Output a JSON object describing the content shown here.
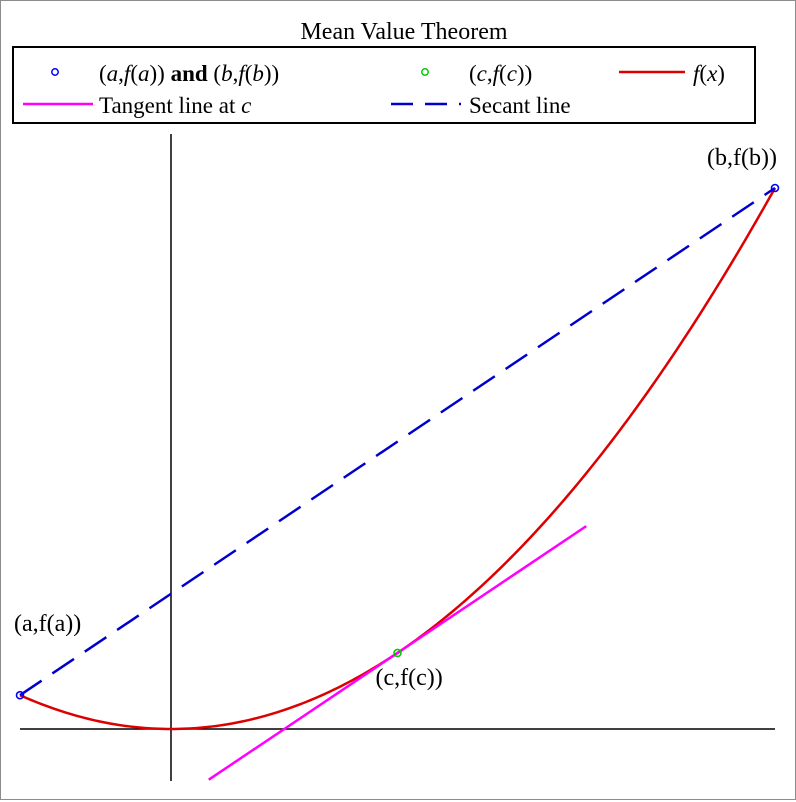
{
  "chart_data": {
    "type": "line",
    "title": "Mean Value Theorem",
    "xlabel": "",
    "ylabel": "",
    "xlim": [
      -1.0,
      4.0
    ],
    "ylim": [
      -0.35,
      4.4
    ],
    "grid": false,
    "legend_position": "top",
    "legend": [
      {
        "kind": "point",
        "label_parts": [
          {
            "t": "(",
            "i": false
          },
          {
            "t": "a",
            "i": true
          },
          {
            "t": ",",
            "i": false
          },
          {
            "t": "f",
            "i": true
          },
          {
            "t": "(",
            "i": false
          },
          {
            "t": "a",
            "i": true
          },
          {
            "t": "))",
            "i": false
          },
          {
            "t": " and ",
            "b": true
          },
          {
            "t": "(",
            "i": false
          },
          {
            "t": "b",
            "i": true
          },
          {
            "t": ",",
            "i": false
          },
          {
            "t": "f",
            "i": true
          },
          {
            "t": "(",
            "i": false
          },
          {
            "t": "b",
            "i": true
          },
          {
            "t": "))",
            "i": false
          }
        ],
        "color": "#0000ff"
      },
      {
        "kind": "point",
        "label_parts": [
          {
            "t": "(",
            "i": false
          },
          {
            "t": "c",
            "i": true
          },
          {
            "t": ",",
            "i": false
          },
          {
            "t": "f",
            "i": true
          },
          {
            "t": "(",
            "i": false
          },
          {
            "t": "c",
            "i": true
          },
          {
            "t": "))",
            "i": false
          }
        ],
        "color": "#00cc00"
      },
      {
        "kind": "solid",
        "label_parts": [
          {
            "t": "f",
            "i": true
          },
          {
            "t": "(",
            "i": false
          },
          {
            "t": "x",
            "i": true
          },
          {
            "t": ")",
            "i": false
          }
        ],
        "color": "#dd0000"
      },
      {
        "kind": "solid",
        "label_parts": [
          {
            "t": "Tangent line at ",
            "i": false
          },
          {
            "t": "c",
            "i": true
          }
        ],
        "color": "#ff00ff"
      },
      {
        "kind": "dashed",
        "label_parts": [
          {
            "t": "Secant line",
            "i": false
          }
        ],
        "color": "#0000cc"
      }
    ],
    "series": [
      {
        "name": "f(x)",
        "color": "#dd0000",
        "function": "x^2/3",
        "x": [
          -1.0,
          -0.5,
          0.0,
          0.5,
          1.0,
          1.5,
          2.0,
          2.5,
          3.0,
          3.5,
          4.0
        ],
        "y": [
          0.333,
          0.083,
          0.0,
          0.083,
          0.333,
          0.75,
          1.333,
          2.083,
          3.0,
          4.083,
          5.333
        ]
      },
      {
        "name": "Tangent line at c",
        "color": "#ff00ff",
        "x": [
          0.25,
          2.75
        ],
        "y": [
          -0.5,
          2.0
        ]
      },
      {
        "name": "Secant line",
        "color": "#0000cc",
        "x": [
          -1.0,
          4.0
        ],
        "y": [
          0.333,
          5.333
        ]
      }
    ],
    "points": [
      {
        "id": "a",
        "x": -1.0,
        "y": 0.333,
        "color": "#0000ff",
        "label": "(a,f(a))",
        "label_pos": "above"
      },
      {
        "id": "b",
        "x": 4.0,
        "y": 5.333,
        "color": "#0000ff",
        "label": "(b,f(b))",
        "label_pos": "above-left"
      },
      {
        "id": "c",
        "x": 1.5,
        "y": 0.75,
        "color": "#00cc00",
        "label": "(c,f(c))",
        "label_pos": "below"
      }
    ]
  }
}
